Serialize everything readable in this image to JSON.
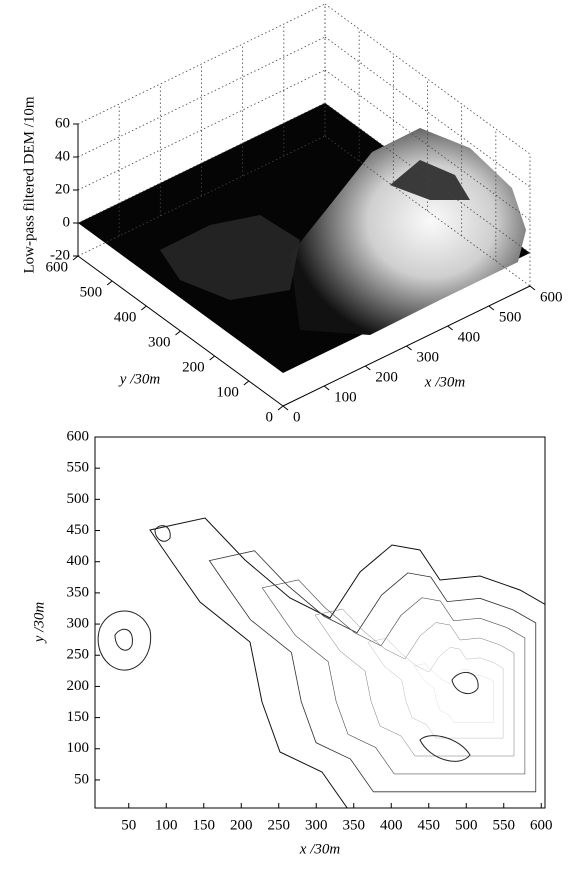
{
  "chart_data": [
    {
      "type": "surface3d",
      "zlabel": "Low-pass filtered DEM /10m",
      "xlabel": "x /30m",
      "ylabel": "y /30m",
      "xlim": [
        0,
        600
      ],
      "ylim": [
        0,
        600
      ],
      "zlim": [
        -20,
        60
      ],
      "xticks": [
        0,
        100,
        200,
        300,
        400,
        500,
        600
      ],
      "yticks": [
        0,
        100,
        200,
        300,
        400,
        500,
        600
      ],
      "zticks": [
        -20,
        0,
        20,
        40,
        60
      ],
      "grid": true
    },
    {
      "type": "contour",
      "xlabel": "x /30m",
      "ylabel": "y /30m",
      "xlim": [
        5,
        605
      ],
      "ylim": [
        5,
        600
      ],
      "xticks": [
        50,
        100,
        150,
        200,
        250,
        300,
        350,
        400,
        450,
        500,
        550,
        600
      ],
      "yticks": [
        50,
        100,
        150,
        200,
        250,
        300,
        350,
        400,
        450,
        500,
        550,
        600
      ]
    }
  ]
}
